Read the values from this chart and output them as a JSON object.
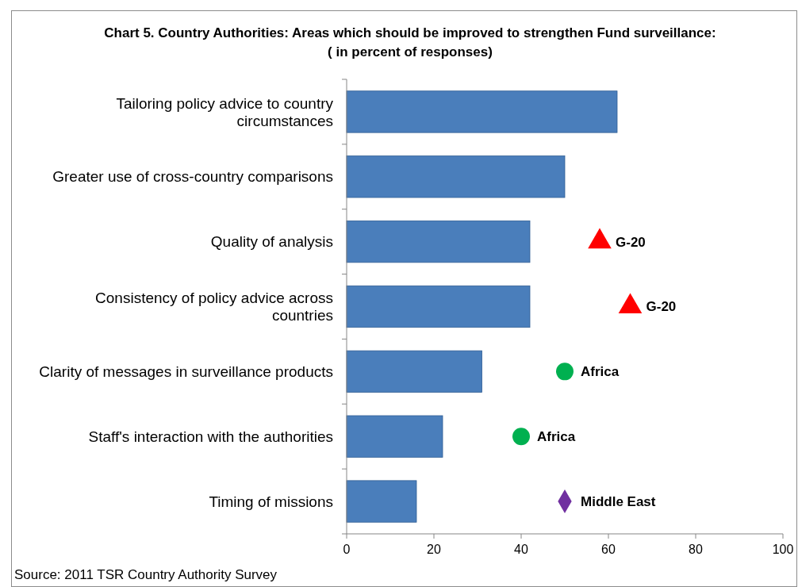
{
  "chart_data": {
    "type": "bar",
    "orientation": "horizontal",
    "title": "Chart 5. Country Authorities: Areas which should be improved to strengthen Fund surveillance:\n( in percent of responses)",
    "categories": [
      "Tailoring policy advice to country circumstances",
      "Greater use of cross-country comparisons",
      "Quality of analysis",
      "Consistency of policy advice across countries",
      "Clarity of messages in surveillance products",
      "Staff's interaction with the authorities",
      "Timing of missions"
    ],
    "series": [
      {
        "color": "#4a7ebb",
        "values": [
          62,
          50,
          42,
          42,
          31,
          22,
          16
        ]
      },
      {
        "type": "scatter",
        "name": "G-20",
        "marker": "triangle",
        "color": "#ff0000",
        "x": [
          "Quality of analysis",
          "Consistency of policy advice across countries"
        ],
        "values": [
          58,
          65
        ]
      },
      {
        "type": "scatter",
        "name": "Africa",
        "marker": "circle",
        "color": "#00b050",
        "x": [
          "Clarity of messages in surveillance products",
          "Staff's interaction with the authorities"
        ],
        "values": [
          50,
          40
        ]
      },
      {
        "type": "scatter",
        "name": "Middle East",
        "marker": "diamond",
        "color": "#7030a0",
        "x": [
          "Timing of missions"
        ],
        "values": [
          50
        ]
      }
    ],
    "xlim": [
      0,
      100
    ],
    "xticks": [
      0,
      20,
      40,
      60,
      80,
      100
    ],
    "grid": false,
    "annotations": [
      "Source: 2011 TSR Country Authority Survey"
    ]
  }
}
